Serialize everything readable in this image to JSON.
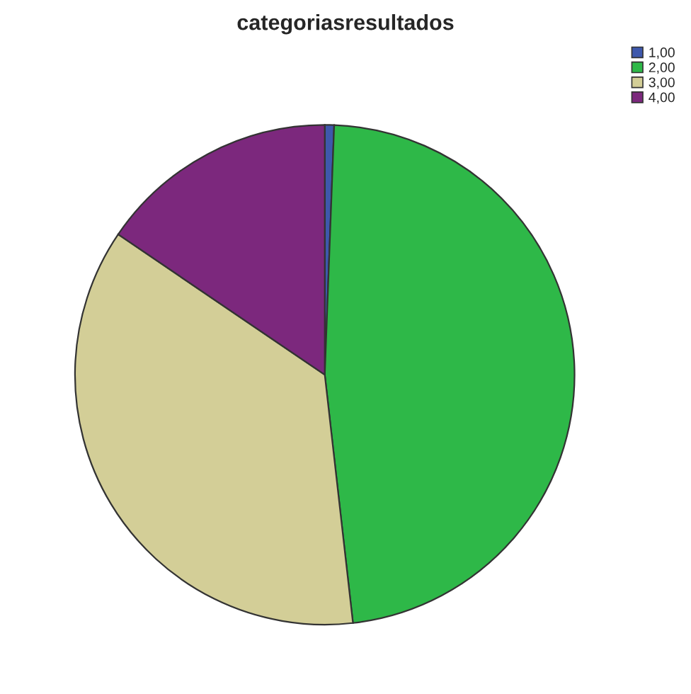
{
  "chart_data": {
    "type": "pie",
    "title": "categoriasresultados",
    "categories": [
      "1,00",
      "2,00",
      "3,00",
      "4,00"
    ],
    "values": [
      0.6,
      47.6,
      36.3,
      15.5
    ],
    "colors": [
      "#3e58ac",
      "#2eb848",
      "#d3ce97",
      "#7c287d"
    ],
    "legend": "top right"
  }
}
